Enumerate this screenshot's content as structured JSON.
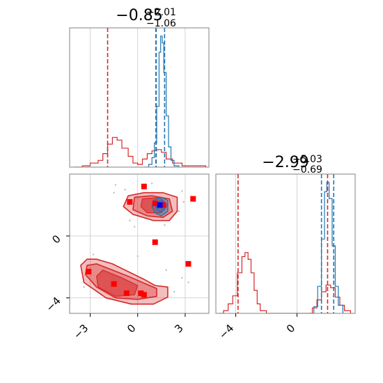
{
  "colors": {
    "red": "#d62728",
    "blue": "#1f77b4",
    "marker_red": "#ff0000",
    "marker_blue": "#0000ff",
    "grid": "#c8c8c8",
    "axis": "#808080"
  },
  "chart_data": {
    "type": "corner",
    "parameters": [
      {
        "title": {
          "median": "−0.85",
          "plus": "+2.01",
          "minus": "−1.06"
        },
        "xlim": [
          -4.3,
          4.5
        ],
        "xticks": [
          {
            "value": -3,
            "label": "−3"
          },
          {
            "value": 0,
            "label": "0"
          },
          {
            "value": 3,
            "label": "3"
          }
        ],
        "red_lines": [
          -1.9,
          1.15
        ],
        "blue_lines": [
          1.17,
          1.7
        ],
        "red_hist": [
          [
            -4.0,
            0.0
          ],
          [
            -3.5,
            0.01
          ],
          [
            -3.0,
            0.03
          ],
          [
            -2.5,
            0.05
          ],
          [
            -2.2,
            0.1
          ],
          [
            -1.9,
            0.17
          ],
          [
            -1.6,
            0.22
          ],
          [
            -1.3,
            0.2
          ],
          [
            -1.0,
            0.14
          ],
          [
            -0.6,
            0.08
          ],
          [
            -0.3,
            0.03
          ],
          [
            0.0,
            0.02
          ],
          [
            0.3,
            0.06
          ],
          [
            0.6,
            0.1
          ],
          [
            0.9,
            0.12
          ],
          [
            1.2,
            0.13
          ],
          [
            1.5,
            0.11
          ],
          [
            1.8,
            0.06
          ],
          [
            2.2,
            0.03
          ],
          [
            2.8,
            0.01
          ],
          [
            3.6,
            0.01
          ],
          [
            4.3,
            0.0
          ]
        ],
        "blue_hist": [
          [
            0.4,
            0.0
          ],
          [
            0.7,
            0.02
          ],
          [
            0.9,
            0.07
          ],
          [
            1.05,
            0.18
          ],
          [
            1.2,
            0.45
          ],
          [
            1.35,
            0.85
          ],
          [
            1.45,
            0.97
          ],
          [
            1.55,
            0.92
          ],
          [
            1.65,
            0.7
          ],
          [
            1.8,
            0.38
          ],
          [
            1.95,
            0.15
          ],
          [
            2.1,
            0.05
          ],
          [
            2.3,
            0.01
          ],
          [
            2.6,
            0.0
          ]
        ]
      },
      {
        "title": {
          "median": "−2.99",
          "plus": "+5.03",
          "minus": "−0.69"
        },
        "xlim": [
          -5.3,
          3.8
        ],
        "ylim": [
          -5.0,
          4.0
        ],
        "xticks": [
          {
            "value": -4,
            "label": "−4"
          },
          {
            "value": 0,
            "label": "0"
          }
        ],
        "yticks": [
          {
            "value": -4,
            "label": "−4"
          },
          {
            "value": 0,
            "label": "0"
          }
        ],
        "red_lines": [
          -3.85,
          2.0
        ],
        "blue_lines": [
          1.6,
          2.4
        ],
        "red_hist": [
          [
            -5.1,
            0.0
          ],
          [
            -4.8,
            0.02
          ],
          [
            -4.5,
            0.07
          ],
          [
            -4.2,
            0.13
          ],
          [
            -3.9,
            0.3
          ],
          [
            -3.6,
            0.42
          ],
          [
            -3.4,
            0.45
          ],
          [
            -3.2,
            0.4
          ],
          [
            -3.0,
            0.3
          ],
          [
            -2.8,
            0.17
          ],
          [
            -2.6,
            0.07
          ],
          [
            -2.4,
            0.02
          ],
          [
            -2.0,
            0.0
          ],
          [
            0.6,
            0.0
          ],
          [
            1.0,
            0.04
          ],
          [
            1.3,
            0.1
          ],
          [
            1.6,
            0.16
          ],
          [
            1.9,
            0.21
          ],
          [
            2.2,
            0.19
          ],
          [
            2.5,
            0.12
          ],
          [
            2.8,
            0.06
          ],
          [
            3.1,
            0.02
          ],
          [
            3.5,
            0.0
          ]
        ],
        "blue_hist": [
          [
            0.8,
            0.0
          ],
          [
            1.1,
            0.05
          ],
          [
            1.35,
            0.2
          ],
          [
            1.6,
            0.55
          ],
          [
            1.8,
            0.9
          ],
          [
            1.95,
            0.97
          ],
          [
            2.1,
            0.85
          ],
          [
            2.3,
            0.5
          ],
          [
            2.5,
            0.2
          ],
          [
            2.7,
            0.06
          ],
          [
            3.0,
            0.0
          ]
        ]
      }
    ],
    "scatter_2d": {
      "red_markers": [
        [
          0.4,
          3.2
        ],
        [
          -0.5,
          2.2
        ],
        [
          3.5,
          2.4
        ],
        [
          1.1,
          2.1
        ],
        [
          1.6,
          2.0
        ],
        [
          1.1,
          -0.4
        ],
        [
          3.2,
          -1.8
        ],
        [
          -3.1,
          -2.3
        ],
        [
          -1.5,
          -3.1
        ],
        [
          -0.7,
          -3.7
        ],
        [
          0.2,
          -3.7
        ],
        [
          0.4,
          -3.8
        ]
      ],
      "blue_markers": [
        [
          1.4,
          2.0
        ]
      ],
      "red_contours_outer": [
        [
          [
            -2.6,
            -1.5
          ],
          [
            -1.6,
            -1.8
          ],
          [
            -0.6,
            -2.3
          ],
          [
            0.4,
            -2.8
          ],
          [
            1.1,
            -3.2
          ],
          [
            1.9,
            -3.3
          ],
          [
            1.9,
            -3.95
          ],
          [
            1.0,
            -4.4
          ],
          [
            -0.4,
            -4.4
          ],
          [
            -2.0,
            -4.0
          ],
          [
            -3.4,
            -3.0
          ],
          [
            -3.6,
            -1.9
          ],
          [
            -3.2,
            -1.5
          ]
        ],
        [
          [
            -0.6,
            2.6
          ],
          [
            0.4,
            2.8
          ],
          [
            1.6,
            2.8
          ],
          [
            2.5,
            2.5
          ],
          [
            2.5,
            1.6
          ],
          [
            2.0,
            1.0
          ],
          [
            1.0,
            1.0
          ],
          [
            -0.3,
            1.4
          ],
          [
            -0.9,
            1.9
          ]
        ]
      ],
      "red_contours_mid": [
        [
          [
            -2.6,
            -1.8
          ],
          [
            -1.6,
            -2.2
          ],
          [
            -0.6,
            -2.6
          ],
          [
            0.3,
            -3.0
          ],
          [
            1.2,
            -3.4
          ],
          [
            1.2,
            -3.9
          ],
          [
            0.0,
            -4.1
          ],
          [
            -1.4,
            -4.0
          ],
          [
            -2.6,
            -3.3
          ],
          [
            -3.3,
            -2.5
          ],
          [
            -3.2,
            -1.9
          ]
        ],
        [
          [
            -0.2,
            2.5
          ],
          [
            0.9,
            2.6
          ],
          [
            2.0,
            2.4
          ],
          [
            2.2,
            1.6
          ],
          [
            1.6,
            1.2
          ],
          [
            0.6,
            1.3
          ],
          [
            -0.3,
            1.7
          ]
        ]
      ],
      "red_contours_inner": [
        [
          [
            -2.2,
            -2.2
          ],
          [
            -1.0,
            -2.7
          ],
          [
            0.0,
            -3.2
          ],
          [
            -0.2,
            -3.8
          ],
          [
            -1.4,
            -3.9
          ],
          [
            -2.5,
            -3.3
          ],
          [
            -2.6,
            -2.6
          ]
        ],
        [
          [
            0.3,
            2.4
          ],
          [
            1.4,
            2.5
          ],
          [
            1.9,
            2.0
          ],
          [
            1.5,
            1.5
          ],
          [
            0.6,
            1.5
          ],
          [
            0.2,
            1.9
          ]
        ]
      ],
      "blue_contours": [
        [
          [
            1.0,
            2.3
          ],
          [
            1.5,
            2.5
          ],
          [
            1.9,
            2.3
          ],
          [
            1.9,
            1.6
          ],
          [
            1.5,
            1.3
          ],
          [
            1.1,
            1.5
          ],
          [
            0.9,
            1.9
          ]
        ],
        [
          [
            1.15,
            2.15
          ],
          [
            1.5,
            2.3
          ],
          [
            1.75,
            2.1
          ],
          [
            1.7,
            1.7
          ],
          [
            1.45,
            1.55
          ],
          [
            1.2,
            1.7
          ]
        ]
      ],
      "grey_points": [
        [
          -0.8,
          3.0
        ],
        [
          -1.5,
          2.8
        ],
        [
          -0.5,
          1.0
        ],
        [
          2.6,
          1.6
        ],
        [
          2.8,
          2.9
        ],
        [
          0.9,
          3.4
        ],
        [
          -2.8,
          -1.2
        ],
        [
          -3.4,
          -3.3
        ],
        [
          2.3,
          -3.6
        ],
        [
          2.8,
          -2.7
        ],
        [
          1.8,
          -2.2
        ],
        [
          3.2,
          -3.0
        ],
        [
          -0.2,
          0.6
        ],
        [
          1.7,
          0.7
        ],
        [
          -1.4,
          3.3
        ],
        [
          2.9,
          2.2
        ],
        [
          0.0,
          -1.3
        ]
      ]
    }
  }
}
